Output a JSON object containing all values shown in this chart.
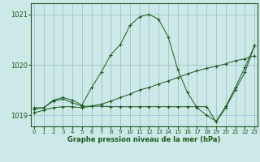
{
  "title": "Graphe pression niveau de la mer (hPa)",
  "bg_color": "#cce8e8",
  "grid_color": "#99bbbb",
  "line_color": "#1a5c1a",
  "xlim": [
    -0.3,
    23.3
  ],
  "ylim": [
    1018.78,
    1021.22
  ],
  "yticks": [
    1019,
    1020,
    1021
  ],
  "xticks": [
    0,
    1,
    2,
    3,
    4,
    5,
    6,
    7,
    8,
    9,
    10,
    11,
    12,
    13,
    14,
    15,
    16,
    17,
    18,
    19,
    20,
    21,
    22,
    23
  ],
  "line1": {
    "x": [
      0,
      1,
      2,
      3,
      4,
      5,
      6,
      7,
      8,
      9,
      10,
      11,
      12,
      13,
      14,
      15,
      16,
      17,
      18,
      19,
      20,
      21,
      22,
      23
    ],
    "y": [
      1019.05,
      1019.1,
      1019.15,
      1019.17,
      1019.17,
      1019.15,
      1019.18,
      1019.22,
      1019.28,
      1019.35,
      1019.42,
      1019.5,
      1019.55,
      1019.62,
      1019.68,
      1019.75,
      1019.82,
      1019.88,
      1019.93,
      1019.97,
      1020.02,
      1020.08,
      1020.12,
      1020.18
    ]
  },
  "line2": {
    "x": [
      0,
      1,
      2,
      3,
      4,
      5,
      6,
      7,
      8,
      9,
      10,
      11,
      12,
      13,
      14,
      15,
      16,
      17,
      18,
      19,
      20,
      21,
      22,
      23
    ],
    "y": [
      1019.12,
      1019.15,
      1019.3,
      1019.35,
      1019.3,
      1019.2,
      1019.55,
      1019.85,
      1020.2,
      1020.4,
      1020.78,
      1020.95,
      1021.0,
      1020.9,
      1020.55,
      1019.9,
      1019.45,
      1019.15,
      1019.0,
      1018.88,
      1019.18,
      1019.55,
      1019.95,
      1020.38
    ]
  },
  "line3": {
    "x": [
      0,
      1,
      2,
      3,
      4,
      5,
      6,
      7,
      8,
      9,
      10,
      11,
      12,
      13,
      14,
      15,
      16,
      17,
      18,
      19,
      20,
      21,
      22,
      23
    ],
    "y": [
      1019.15,
      1019.15,
      1019.28,
      1019.32,
      1019.25,
      1019.18,
      1019.18,
      1019.18,
      1019.17,
      1019.17,
      1019.17,
      1019.17,
      1019.17,
      1019.17,
      1019.17,
      1019.17,
      1019.17,
      1019.17,
      1019.17,
      1018.87,
      1019.15,
      1019.5,
      1019.85,
      1020.38
    ]
  }
}
